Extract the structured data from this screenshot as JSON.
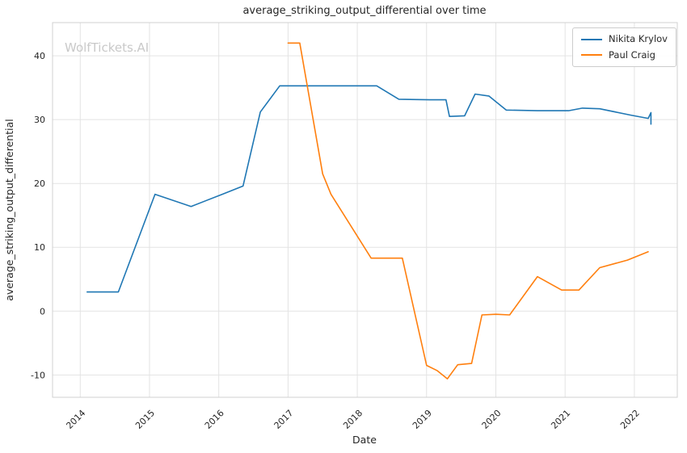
{
  "chart_data": {
    "type": "line",
    "title": "average_striking_output_differential over time",
    "xlabel": "Date",
    "ylabel": "average_striking_output_differential",
    "watermark": "WolfTickets.AI",
    "x_ticks": [
      2014,
      2015,
      2016,
      2017,
      2018,
      2019,
      2020,
      2021,
      2022
    ],
    "y_ticks": [
      -10,
      0,
      10,
      20,
      30,
      40
    ],
    "xlim": [
      2013.6,
      2022.62
    ],
    "ylim": [
      -13.5,
      45.2
    ],
    "grid": true,
    "legend_position": "upper right",
    "series": [
      {
        "name": "Nikita Krylov",
        "color": "#1f77b4",
        "points": [
          [
            2014.1,
            3.0
          ],
          [
            2014.55,
            3.0
          ],
          [
            2015.08,
            18.3
          ],
          [
            2015.6,
            16.4
          ],
          [
            2016.05,
            18.3
          ],
          [
            2016.35,
            19.6
          ],
          [
            2016.6,
            31.2
          ],
          [
            2016.88,
            35.3
          ],
          [
            2017.5,
            35.3
          ],
          [
            2018.28,
            35.3
          ],
          [
            2018.6,
            33.2
          ],
          [
            2019.05,
            33.1
          ],
          [
            2019.28,
            33.1
          ],
          [
            2019.33,
            30.5
          ],
          [
            2019.55,
            30.6
          ],
          [
            2019.7,
            34.0
          ],
          [
            2019.9,
            33.7
          ],
          [
            2020.15,
            31.5
          ],
          [
            2020.6,
            31.4
          ],
          [
            2021.05,
            31.4
          ],
          [
            2021.25,
            31.8
          ],
          [
            2021.5,
            31.7
          ],
          [
            2021.95,
            30.7
          ],
          [
            2022.2,
            30.2
          ],
          [
            2022.24,
            31.1
          ],
          [
            2022.24,
            29.3
          ]
        ]
      },
      {
        "name": "Paul Craig",
        "color": "#ff7f0e",
        "points": [
          [
            2017.0,
            42.0
          ],
          [
            2017.17,
            42.0
          ],
          [
            2017.5,
            21.5
          ],
          [
            2017.62,
            18.3
          ],
          [
            2018.2,
            8.3
          ],
          [
            2018.65,
            8.3
          ],
          [
            2019.0,
            -8.5
          ],
          [
            2019.15,
            -9.3
          ],
          [
            2019.3,
            -10.6
          ],
          [
            2019.45,
            -8.4
          ],
          [
            2019.65,
            -8.2
          ],
          [
            2019.8,
            -0.6
          ],
          [
            2020.0,
            -0.5
          ],
          [
            2020.2,
            -0.6
          ],
          [
            2020.6,
            5.4
          ],
          [
            2020.95,
            3.3
          ],
          [
            2021.2,
            3.3
          ],
          [
            2021.5,
            6.8
          ],
          [
            2021.9,
            8.0
          ],
          [
            2022.2,
            9.3
          ]
        ]
      }
    ]
  }
}
